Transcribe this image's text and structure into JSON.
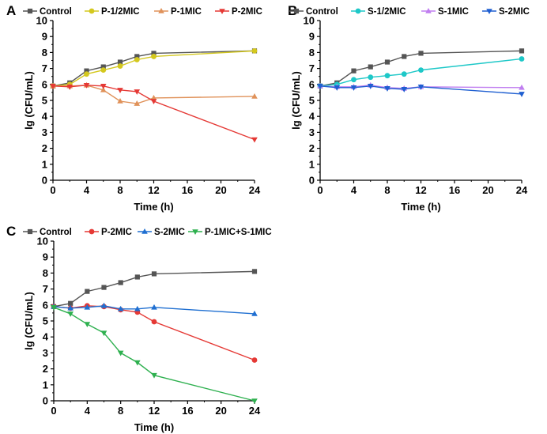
{
  "chart_data": [
    {
      "panel_label": "A",
      "type": "line",
      "xlabel": "Time (h)",
      "ylabel": "lg (CFU/mL)",
      "xlim": [
        0,
        24
      ],
      "ylim": [
        0,
        10
      ],
      "xticks": [
        0,
        4,
        8,
        12,
        16,
        20,
        24
      ],
      "yticks": [
        0,
        1,
        2,
        3,
        4,
        5,
        6,
        7,
        8,
        9,
        10
      ],
      "x": [
        0,
        2,
        4,
        6,
        8,
        10,
        12,
        24
      ],
      "series": [
        {
          "name": "Control",
          "color": "#555555",
          "marker": "square",
          "values": [
            5.9,
            6.1,
            6.85,
            7.1,
            7.4,
            7.75,
            7.95,
            8.1
          ]
        },
        {
          "name": "P-1/2MIC",
          "color": "#d4c81e",
          "marker": "circle",
          "values": [
            5.9,
            6.0,
            6.65,
            6.9,
            7.15,
            7.55,
            7.75,
            8.1
          ]
        },
        {
          "name": "P-1MIC",
          "color": "#e0925a",
          "marker": "triangle-up",
          "values": [
            5.9,
            5.9,
            5.95,
            5.65,
            4.95,
            4.8,
            5.15,
            5.25
          ]
        },
        {
          "name": "P-2MIC",
          "color": "#e53935",
          "marker": "triangle-down",
          "values": [
            5.9,
            5.85,
            5.95,
            5.9,
            5.65,
            5.55,
            4.95,
            2.55
          ]
        }
      ]
    },
    {
      "panel_label": "B",
      "type": "line",
      "xlabel": "Time (h)",
      "ylabel": "lg (CFU/mL)",
      "xlim": [
        0,
        24
      ],
      "ylim": [
        0,
        10
      ],
      "xticks": [
        0,
        4,
        8,
        12,
        16,
        20,
        24
      ],
      "yticks": [
        0,
        1,
        2,
        3,
        4,
        5,
        6,
        7,
        8,
        9,
        10
      ],
      "x": [
        0,
        2,
        4,
        6,
        8,
        10,
        12,
        24
      ],
      "series": [
        {
          "name": "Control",
          "color": "#555555",
          "marker": "square",
          "values": [
            5.9,
            6.1,
            6.85,
            7.1,
            7.4,
            7.75,
            7.95,
            8.1
          ]
        },
        {
          "name": "S-1/2MIC",
          "color": "#1ec8c8",
          "marker": "circle",
          "values": [
            5.9,
            6.0,
            6.3,
            6.45,
            6.55,
            6.65,
            6.9,
            7.6
          ]
        },
        {
          "name": "S-1MIC",
          "color": "#c07ef0",
          "marker": "triangle-up",
          "values": [
            5.9,
            5.85,
            5.85,
            5.95,
            5.8,
            5.75,
            5.85,
            5.8
          ]
        },
        {
          "name": "S-2MIC",
          "color": "#1f5fd1",
          "marker": "triangle-down",
          "values": [
            5.9,
            5.8,
            5.8,
            5.9,
            5.75,
            5.7,
            5.85,
            5.4
          ]
        }
      ]
    },
    {
      "panel_label": "C",
      "type": "line",
      "xlabel": "Time (h)",
      "ylabel": "lg (CFU/mL)",
      "xlim": [
        0,
        24
      ],
      "ylim": [
        0,
        10
      ],
      "xticks": [
        0,
        4,
        8,
        12,
        16,
        20,
        24
      ],
      "yticks": [
        0,
        1,
        2,
        3,
        4,
        5,
        6,
        7,
        8,
        9,
        10
      ],
      "x": [
        0,
        2,
        4,
        6,
        8,
        10,
        12,
        24
      ],
      "series": [
        {
          "name": "Control",
          "color": "#555555",
          "marker": "square",
          "values": [
            5.9,
            6.1,
            6.85,
            7.1,
            7.4,
            7.75,
            7.95,
            8.1
          ]
        },
        {
          "name": "P-2MIC",
          "color": "#e53935",
          "marker": "circle",
          "values": [
            5.9,
            5.8,
            5.95,
            5.9,
            5.7,
            5.55,
            4.95,
            2.55
          ]
        },
        {
          "name": "S-2MIC",
          "color": "#1f6fd1",
          "marker": "triangle-up",
          "values": [
            5.9,
            5.8,
            5.85,
            5.95,
            5.75,
            5.75,
            5.85,
            5.45
          ]
        },
        {
          "name": "P-1MIC+S-1MIC",
          "color": "#2eb04f",
          "marker": "triangle-down",
          "values": [
            5.85,
            5.45,
            4.8,
            4.25,
            3.0,
            2.4,
            1.6,
            0.0
          ]
        }
      ]
    }
  ]
}
